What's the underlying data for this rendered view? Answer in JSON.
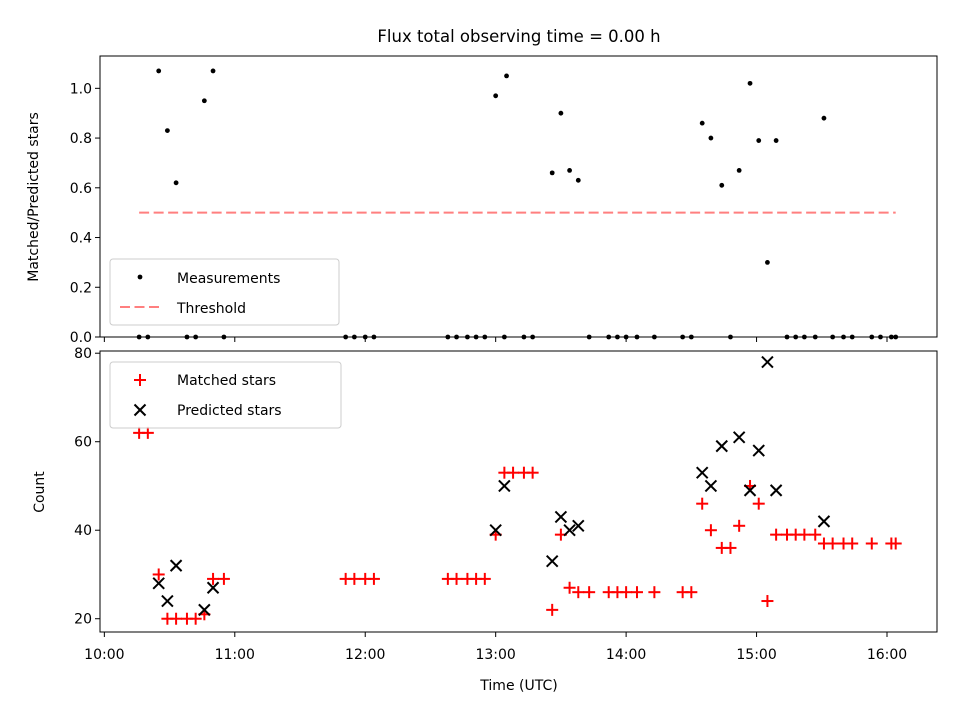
{
  "chart_data": [
    {
      "type": "scatter",
      "title": "Flux total observing time = 0.00 h",
      "ylabel": "Matched/Predicted stars",
      "xlabel": "",
      "ylim": [
        0,
        1.13
      ],
      "xlim": [
        "09:58",
        "16:23"
      ],
      "yticks": [
        0.0,
        0.2,
        0.4,
        0.6,
        0.8,
        1.0
      ],
      "ytick_labels": [
        "0.0",
        "0.2",
        "0.4",
        "0.6",
        "0.8",
        "1.0"
      ],
      "legend": {
        "position": "lower-left",
        "entries": [
          "Measurements",
          "Threshold"
        ]
      },
      "threshold": {
        "y": 0.5,
        "x_start": "10:16",
        "x_end": "16:04",
        "color": "#ff7f7f"
      },
      "series": [
        {
          "name": "Measurements",
          "color": "#000000",
          "marker": "dot",
          "points": [
            {
              "x": "10:16",
              "y": 0
            },
            {
              "x": "10:20",
              "y": 0
            },
            {
              "x": "10:25",
              "y": 1.07
            },
            {
              "x": "10:29",
              "y": 0.83
            },
            {
              "x": "10:33",
              "y": 0.62
            },
            {
              "x": "10:38",
              "y": 0
            },
            {
              "x": "10:42",
              "y": 0
            },
            {
              "x": "10:46",
              "y": 0.95
            },
            {
              "x": "10:50",
              "y": 1.07
            },
            {
              "x": "10:55",
              "y": 0
            },
            {
              "x": "11:51",
              "y": 0
            },
            {
              "x": "11:55",
              "y": 0
            },
            {
              "x": "12:00",
              "y": 0
            },
            {
              "x": "12:04",
              "y": 0
            },
            {
              "x": "12:38",
              "y": 0
            },
            {
              "x": "12:42",
              "y": 0
            },
            {
              "x": "12:47",
              "y": 0
            },
            {
              "x": "12:51",
              "y": 0
            },
            {
              "x": "12:55",
              "y": 0
            },
            {
              "x": "13:00",
              "y": 0.97
            },
            {
              "x": "13:04",
              "y": 0
            },
            {
              "x": "13:05",
              "y": 1.05
            },
            {
              "x": "13:13",
              "y": 0
            },
            {
              "x": "13:17",
              "y": 0
            },
            {
              "x": "13:26",
              "y": 0.66
            },
            {
              "x": "13:30",
              "y": 0.9
            },
            {
              "x": "13:34",
              "y": 0.67
            },
            {
              "x": "13:38",
              "y": 0.63
            },
            {
              "x": "13:43",
              "y": 0
            },
            {
              "x": "13:52",
              "y": 0
            },
            {
              "x": "13:56",
              "y": 0
            },
            {
              "x": "14:00",
              "y": 0
            },
            {
              "x": "14:05",
              "y": 0
            },
            {
              "x": "14:13",
              "y": 0
            },
            {
              "x": "14:26",
              "y": 0
            },
            {
              "x": "14:30",
              "y": 0
            },
            {
              "x": "14:35",
              "y": 0.86
            },
            {
              "x": "14:39",
              "y": 0.8
            },
            {
              "x": "14:44",
              "y": 0.61
            },
            {
              "x": "14:48",
              "y": 0
            },
            {
              "x": "14:52",
              "y": 0.67
            },
            {
              "x": "14:57",
              "y": 1.02
            },
            {
              "x": "15:01",
              "y": 0.79
            },
            {
              "x": "15:05",
              "y": 0.3
            },
            {
              "x": "15:09",
              "y": 0.79
            },
            {
              "x": "15:14",
              "y": 0
            },
            {
              "x": "15:18",
              "y": 0
            },
            {
              "x": "15:22",
              "y": 0
            },
            {
              "x": "15:27",
              "y": 0
            },
            {
              "x": "15:31",
              "y": 0.88
            },
            {
              "x": "15:35",
              "y": 0
            },
            {
              "x": "15:40",
              "y": 0
            },
            {
              "x": "15:44",
              "y": 0
            },
            {
              "x": "15:53",
              "y": 0
            },
            {
              "x": "15:57",
              "y": 0
            },
            {
              "x": "16:02",
              "y": 0
            },
            {
              "x": "16:04",
              "y": 0
            }
          ]
        }
      ]
    },
    {
      "type": "scatter",
      "title": "",
      "ylabel": "Count",
      "xlabel": "Time (UTC)",
      "ylim": [
        17,
        80.5
      ],
      "xlim": [
        "09:58",
        "16:23"
      ],
      "yticks": [
        20,
        40,
        60,
        80
      ],
      "ytick_labels": [
        "20",
        "40",
        "60",
        "80"
      ],
      "xticks": [
        "10:00",
        "11:00",
        "12:00",
        "13:00",
        "14:00",
        "15:00",
        "16:00"
      ],
      "xtick_labels": [
        "10:00",
        "11:00",
        "12:00",
        "13:00",
        "14:00",
        "15:00",
        "16:00"
      ],
      "legend": {
        "position": "top-left",
        "entries": [
          "Matched stars",
          "Predicted stars"
        ]
      },
      "series": [
        {
          "name": "Matched stars",
          "color": "#ff0000",
          "marker": "plus",
          "points": [
            {
              "x": "10:16",
              "y": 62
            },
            {
              "x": "10:20",
              "y": 62
            },
            {
              "x": "10:25",
              "y": 30
            },
            {
              "x": "10:29",
              "y": 20
            },
            {
              "x": "10:33",
              "y": 20
            },
            {
              "x": "10:38",
              "y": 20
            },
            {
              "x": "10:42",
              "y": 20
            },
            {
              "x": "10:46",
              "y": 21
            },
            {
              "x": "10:50",
              "y": 29
            },
            {
              "x": "10:55",
              "y": 29
            },
            {
              "x": "11:51",
              "y": 29
            },
            {
              "x": "11:55",
              "y": 29
            },
            {
              "x": "12:00",
              "y": 29
            },
            {
              "x": "12:04",
              "y": 29
            },
            {
              "x": "12:38",
              "y": 29
            },
            {
              "x": "12:42",
              "y": 29
            },
            {
              "x": "12:47",
              "y": 29
            },
            {
              "x": "12:51",
              "y": 29
            },
            {
              "x": "12:55",
              "y": 29
            },
            {
              "x": "13:00",
              "y": 39
            },
            {
              "x": "13:04",
              "y": 53
            },
            {
              "x": "13:08",
              "y": 53
            },
            {
              "x": "13:13",
              "y": 53
            },
            {
              "x": "13:17",
              "y": 53
            },
            {
              "x": "13:26",
              "y": 22
            },
            {
              "x": "13:30",
              "y": 39
            },
            {
              "x": "13:34",
              "y": 27
            },
            {
              "x": "13:38",
              "y": 26
            },
            {
              "x": "13:43",
              "y": 26
            },
            {
              "x": "13:52",
              "y": 26
            },
            {
              "x": "13:56",
              "y": 26
            },
            {
              "x": "14:00",
              "y": 26
            },
            {
              "x": "14:05",
              "y": 26
            },
            {
              "x": "14:13",
              "y": 26
            },
            {
              "x": "14:26",
              "y": 26
            },
            {
              "x": "14:30",
              "y": 26
            },
            {
              "x": "14:35",
              "y": 46
            },
            {
              "x": "14:39",
              "y": 40
            },
            {
              "x": "14:44",
              "y": 36
            },
            {
              "x": "14:48",
              "y": 36
            },
            {
              "x": "14:52",
              "y": 41
            },
            {
              "x": "14:57",
              "y": 50
            },
            {
              "x": "15:01",
              "y": 46
            },
            {
              "x": "15:05",
              "y": 24
            },
            {
              "x": "15:09",
              "y": 39
            },
            {
              "x": "15:14",
              "y": 39
            },
            {
              "x": "15:18",
              "y": 39
            },
            {
              "x": "15:22",
              "y": 39
            },
            {
              "x": "15:27",
              "y": 39
            },
            {
              "x": "15:31",
              "y": 37
            },
            {
              "x": "15:35",
              "y": 37
            },
            {
              "x": "15:40",
              "y": 37
            },
            {
              "x": "15:44",
              "y": 37
            },
            {
              "x": "15:53",
              "y": 37
            },
            {
              "x": "16:02",
              "y": 37
            },
            {
              "x": "16:04",
              "y": 37
            }
          ]
        },
        {
          "name": "Predicted stars",
          "color": "#000000",
          "marker": "x",
          "points": [
            {
              "x": "10:25",
              "y": 28
            },
            {
              "x": "10:29",
              "y": 24
            },
            {
              "x": "10:33",
              "y": 32
            },
            {
              "x": "10:46",
              "y": 22
            },
            {
              "x": "10:50",
              "y": 27
            },
            {
              "x": "13:00",
              "y": 40
            },
            {
              "x": "13:04",
              "y": 50
            },
            {
              "x": "13:26",
              "y": 33
            },
            {
              "x": "13:30",
              "y": 43
            },
            {
              "x": "13:34",
              "y": 40
            },
            {
              "x": "13:38",
              "y": 41
            },
            {
              "x": "14:35",
              "y": 53
            },
            {
              "x": "14:39",
              "y": 50
            },
            {
              "x": "14:44",
              "y": 59
            },
            {
              "x": "14:52",
              "y": 61
            },
            {
              "x": "14:57",
              "y": 49
            },
            {
              "x": "15:01",
              "y": 58
            },
            {
              "x": "15:05",
              "y": 78
            },
            {
              "x": "15:09",
              "y": 49
            },
            {
              "x": "15:31",
              "y": 42
            }
          ]
        }
      ]
    }
  ]
}
